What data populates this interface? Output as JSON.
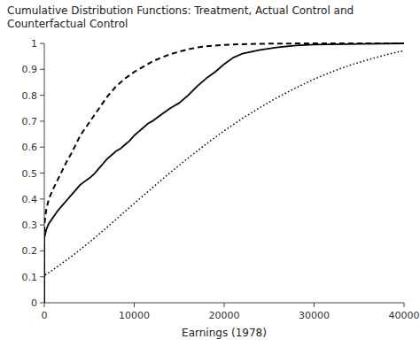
{
  "chart_data": {
    "type": "line",
    "title": "Cumulative Distribution Functions: Treatment, Actual Control and Counterfactual Control",
    "xlabel": "Earnings (1978)",
    "xlim": [
      0,
      40000
    ],
    "ylim": [
      0,
      1
    ],
    "xticks": [
      0,
      10000,
      20000,
      30000,
      40000
    ],
    "yticks": [
      0,
      0.1,
      0.2,
      0.3,
      0.4,
      0.5,
      0.6,
      0.7,
      0.8,
      0.9,
      1
    ],
    "grid": false,
    "series": [
      {
        "color": "#000000",
        "line_style": "dotted",
        "x": [
          0,
          0,
          1000,
          2000,
          3000,
          4000,
          5000,
          6000,
          7000,
          8000,
          9000,
          10000,
          12000,
          14000,
          16000,
          18000,
          20000,
          22000,
          24000,
          26000,
          28000,
          30000,
          32000,
          34000,
          36000,
          38000,
          40000
        ],
        "values": [
          0,
          0.105,
          0.128,
          0.153,
          0.178,
          0.205,
          0.233,
          0.262,
          0.292,
          0.322,
          0.353,
          0.383,
          0.443,
          0.502,
          0.558,
          0.612,
          0.663,
          0.71,
          0.753,
          0.793,
          0.829,
          0.862,
          0.891,
          0.916,
          0.937,
          0.956,
          0.972
        ]
      },
      {
        "color": "#000000",
        "line_style": "solid",
        "x": [
          0,
          0,
          200,
          500,
          1000,
          1500,
          2000,
          2500,
          3000,
          3500,
          4000,
          4500,
          5000,
          5500,
          6000,
          6500,
          7000,
          7500,
          8000,
          8500,
          9000,
          9500,
          10000,
          10500,
          11000,
          11500,
          12000,
          13000,
          14000,
          15000,
          16000,
          17000,
          18000,
          19000,
          20000,
          21000,
          22000,
          24000,
          26000,
          28000,
          30000,
          35000,
          40000
        ],
        "values": [
          0,
          0.25,
          0.28,
          0.305,
          0.33,
          0.355,
          0.375,
          0.395,
          0.415,
          0.435,
          0.455,
          0.468,
          0.48,
          0.495,
          0.515,
          0.535,
          0.555,
          0.57,
          0.585,
          0.595,
          0.61,
          0.625,
          0.645,
          0.66,
          0.675,
          0.69,
          0.7,
          0.725,
          0.75,
          0.77,
          0.8,
          0.835,
          0.865,
          0.89,
          0.92,
          0.945,
          0.96,
          0.975,
          0.985,
          0.992,
          0.995,
          0.998,
          1.0
        ]
      },
      {
        "color": "#000000",
        "line_style": "dashed",
        "x": [
          0,
          0,
          200,
          500,
          1000,
          1500,
          2000,
          2500,
          3000,
          3500,
          4000,
          4500,
          5000,
          5500,
          6000,
          6500,
          7000,
          7500,
          8000,
          9000,
          10000,
          11000,
          12000,
          13000,
          14000,
          15000,
          16000,
          17000,
          18000,
          20000,
          22000,
          25000,
          30000,
          40000
        ],
        "values": [
          0,
          0.3,
          0.355,
          0.4,
          0.44,
          0.475,
          0.51,
          0.545,
          0.575,
          0.61,
          0.645,
          0.67,
          0.695,
          0.72,
          0.745,
          0.77,
          0.795,
          0.815,
          0.835,
          0.865,
          0.89,
          0.91,
          0.93,
          0.945,
          0.958,
          0.968,
          0.977,
          0.984,
          0.989,
          0.994,
          0.997,
          0.999,
          1.0,
          1.0
        ]
      }
    ]
  }
}
